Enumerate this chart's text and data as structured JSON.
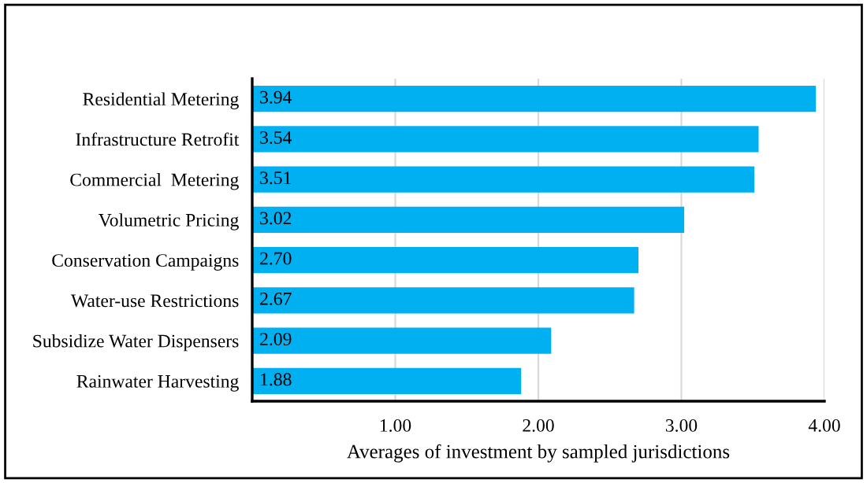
{
  "chart_data": {
    "type": "bar",
    "orientation": "horizontal",
    "categories": [
      "Residential Metering",
      "Infrastructure Retrofit",
      "Commercial  Metering",
      "Volumetric Pricing",
      "Conservation Campaigns",
      "Water-use Restrictions",
      "Subsidize Water Dispensers",
      "Rainwater Harvesting"
    ],
    "values": [
      3.94,
      3.54,
      3.51,
      3.02,
      2.7,
      2.67,
      2.09,
      1.88
    ],
    "value_labels": [
      "3.94",
      "3.54",
      "3.51",
      "3.02",
      "2.70",
      "2.67",
      "2.09",
      "1.88"
    ],
    "color": "#00b0f0",
    "xlabel": "Averages of investment by sampled jurisdictions",
    "xlim": [
      0,
      4
    ],
    "xticks": [
      {
        "value": 1,
        "label": "1.00"
      },
      {
        "value": 2,
        "label": "2.00"
      },
      {
        "value": 3,
        "label": "3.00"
      },
      {
        "value": 4,
        "label": "4.00"
      }
    ],
    "grid": "x"
  }
}
